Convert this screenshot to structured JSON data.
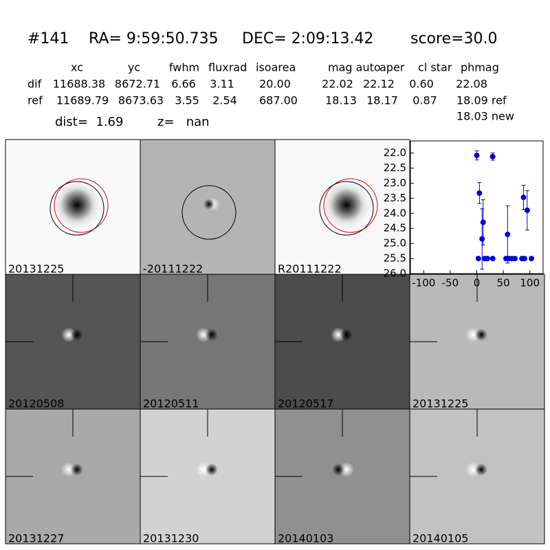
{
  "header": {
    "id": "#141",
    "ra": "RA= 9:59:50.735",
    "dec": "DEC= 2:09:13.42",
    "score": "score=30.0"
  },
  "table": {
    "columns": [
      "xc",
      "yc",
      "fwhm",
      "fluxrad",
      "isoarea",
      "mag auto",
      "aper",
      "cl star",
      "phmag"
    ],
    "rows": [
      {
        "name": "dif",
        "cells": [
          "11688.38",
          "8672.71",
          "6.66",
          "3.11",
          "20.00",
          "22.02",
          "22.12",
          "0.60",
          "22.08"
        ]
      },
      {
        "name": "ref",
        "cells": [
          "11689.79",
          "8673.63",
          "3.55",
          "2.54",
          "687.00",
          "18.13",
          "18.17",
          "0.87",
          "18.09 ref"
        ]
      }
    ],
    "note": "18.03 new"
  },
  "dist": "dist=  1.69",
  "z": "z=   nan",
  "panels": [
    {
      "label": "20131225"
    },
    {
      "label": "-20111222"
    },
    {
      "label": "R20111222"
    },
    {
      "label": "20120508"
    },
    {
      "label": "20120511"
    },
    {
      "label": "20120517"
    },
    {
      "label": "20131225"
    },
    {
      "label": "20131227"
    },
    {
      "label": "20131230"
    },
    {
      "label": "20140103"
    },
    {
      "label": "20140105"
    }
  ],
  "chart_data": {
    "type": "scatter",
    "color": "#0000cc",
    "x": [
      0,
      30,
      5,
      10,
      12,
      58,
      88,
      95,
      3,
      15,
      20,
      30,
      55,
      60,
      66,
      72,
      85,
      90,
      103
    ],
    "y": [
      22.08,
      22.12,
      23.33,
      24.85,
      24.3,
      24.7,
      23.47,
      23.9,
      25.5,
      25.5,
      25.5,
      25.5,
      25.5,
      25.5,
      25.5,
      25.5,
      25.5,
      25.5,
      25.5
    ],
    "err": [
      0.15,
      0.12,
      0.35,
      1.0,
      0.75,
      0.95,
      0.4,
      0.65,
      0.05,
      0.05,
      0.05,
      0.05,
      0.05,
      0.05,
      0.05,
      0.05,
      0.05,
      0.05,
      0.05
    ],
    "xlim": [
      -125,
      125
    ],
    "ylim": [
      26.0,
      21.6
    ],
    "xticks": [
      -100,
      -50,
      0,
      50,
      100
    ],
    "yticks": [
      {
        "value": 22,
        "label": "22.0"
      },
      {
        "value": 22.5,
        "label": "22.5"
      },
      {
        "value": 23,
        "label": "23.0"
      },
      {
        "value": 23.5,
        "label": "23.5"
      },
      {
        "value": 24,
        "label": "24.0"
      },
      {
        "value": 24.5,
        "label": "24.5"
      },
      {
        "value": 25,
        "label": "25.0"
      },
      {
        "value": 25.5,
        "label": "25.5"
      },
      {
        "value": 26,
        "label": "26.0"
      }
    ]
  }
}
